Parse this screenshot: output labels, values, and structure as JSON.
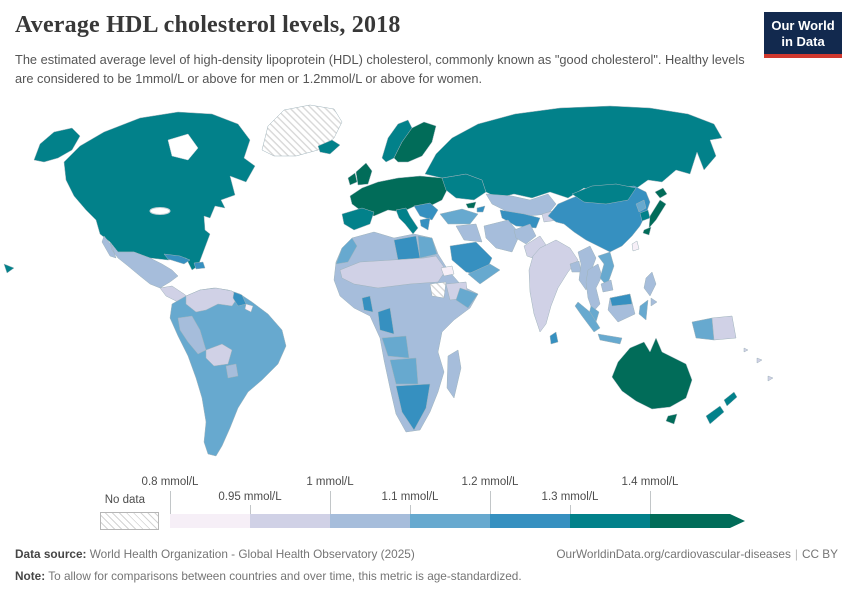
{
  "header": {
    "title": "Average HDL cholesterol levels, 2018",
    "subtitle": "The estimated average level of high-density lipoprotein (HDL) cholesterol, commonly known as \"good cholesterol\". Healthy levels are considered to be 1mmol/L or above for men or 1.2mmol/L or above for women.",
    "logo_line1": "Our World",
    "logo_line2": "in Data"
  },
  "theme": {
    "logo_bg": "#12294e",
    "logo_stripe": "#d0382e",
    "title_color": "#383838"
  },
  "legend": {
    "no_data_label": "No data",
    "bins": [
      {
        "label": "0.8 mmol/L",
        "row": "top"
      },
      {
        "label": "0.95 mmol/L",
        "row": "bottom"
      },
      {
        "label": "1 mmol/L",
        "row": "top"
      },
      {
        "label": "1.1 mmol/L",
        "row": "bottom"
      },
      {
        "label": "1.2 mmol/L",
        "row": "top"
      },
      {
        "label": "1.3 mmol/L",
        "row": "bottom"
      },
      {
        "label": "1.4 mmol/L",
        "row": "top"
      }
    ]
  },
  "map": {
    "palette": [
      "#f6eff7",
      "#d0d1e6",
      "#a6bddb",
      "#67a9cf",
      "#3690c0",
      "#02818a",
      "#016c59"
    ],
    "regions": {
      "greenland": "no-data",
      "north-america": 5,
      "mexico": 2,
      "central-america": 1,
      "cuba": 4,
      "hispaniola": 4,
      "south-america": 3,
      "colombia-venezuela": 1,
      "guyana": 4,
      "suriname": 0,
      "peru": 2,
      "bolivia": 1,
      "paraguay": 2,
      "europe-west": 6,
      "uk": 6,
      "ireland": 6,
      "iceland": 5,
      "norway": 5,
      "sweden-finland": 6,
      "spain-portugal": 5,
      "italy": 5,
      "balkans": 4,
      "greece": 4,
      "ukraine-belarus": 5,
      "russia": 5,
      "kazakhstan": 2,
      "central-asia": 4,
      "kyrgyzstan-tajikistan": 1,
      "georgia": 6,
      "azerbaijan": 4,
      "turkey": 3,
      "syria-iraq": 2,
      "iran": 2,
      "afghanistan": 2,
      "pakistan": 1,
      "saudi-arabia": 4,
      "yemen-oman": 3,
      "india": 1,
      "bangladesh": 2,
      "sri-lanka": 4,
      "china": 4,
      "mongolia": 5,
      "north-korea": 3,
      "south-korea": 5,
      "japan": 6,
      "taiwan": 0,
      "myanmar": 2,
      "thailand": 2,
      "vietnam-laos": 3,
      "cambodia": 2,
      "malaysia": 3,
      "indonesia": 3,
      "borneo-indonesia": 2,
      "borneo-malaysia": 4,
      "philippines": 2,
      "papua-new-guinea": 1,
      "pacific-islands": 1,
      "australia": 6,
      "new-zealand": 5,
      "africa": 2,
      "morocco": 3,
      "libya": 4,
      "egypt": 3,
      "sahel": 1,
      "ethiopia": 1,
      "south-sudan": "no-data",
      "eritrea": 0,
      "ghana": 4,
      "cameroon-gabon": 4,
      "somalia": 3,
      "angola": 3,
      "namibia-botswana": 3,
      "south-africa": 4,
      "madagascar": 2
    }
  },
  "footer": {
    "source_label": "Data source:",
    "source_text": " World Health Organization - Global Health Observatory (2025)",
    "link": "OurWorldinData.org/cardiovascular-diseases",
    "license": "CC BY",
    "note_label": "Note:",
    "note_text": " To allow for comparisons between countries and over time, this metric is age-standardized."
  }
}
